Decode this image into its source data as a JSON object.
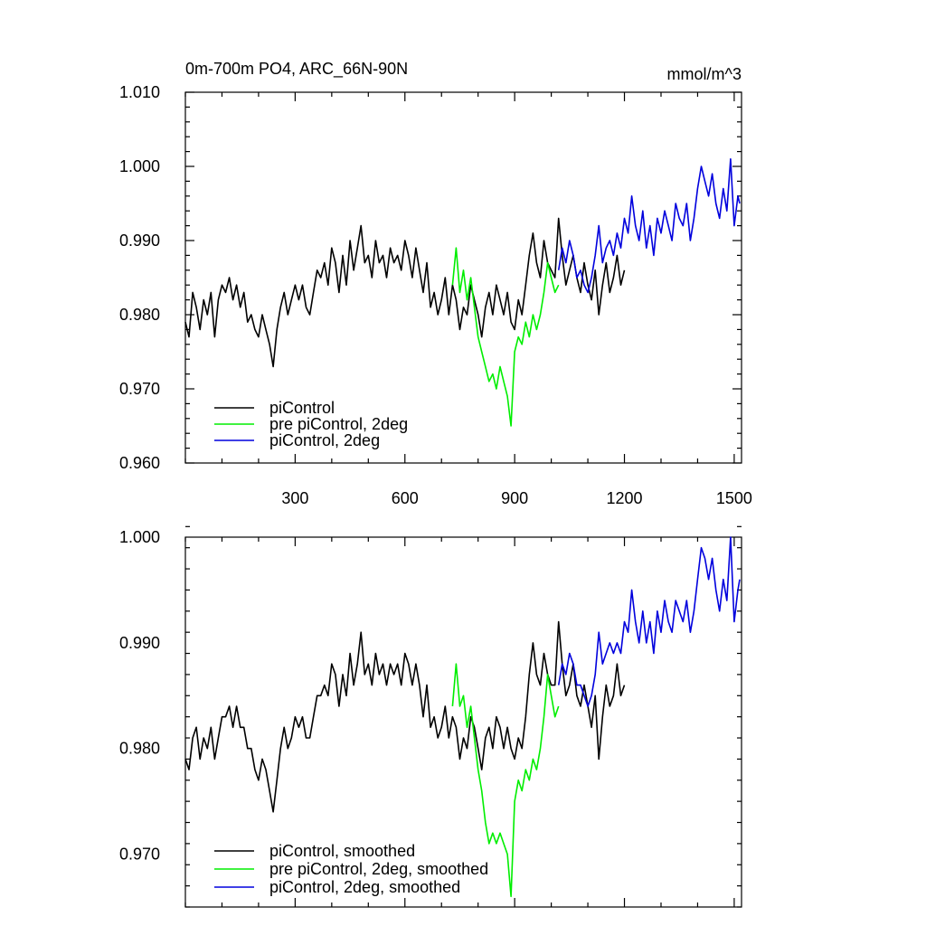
{
  "colors": {
    "black": "#000000",
    "green": "#00ee00",
    "blue": "#0000dd"
  },
  "chart_data": [
    {
      "type": "line",
      "title": "0m-700m PO4, ARC_66N-90N",
      "units": "mmol/m^3",
      "xlim": [
        0,
        1520
      ],
      "ylim": [
        0.96,
        1.01
      ],
      "x_ticks": [
        300,
        600,
        900,
        1200,
        1500
      ],
      "x_tick_labels": [
        "300",
        "600",
        "900",
        "1200",
        "1500"
      ],
      "y_ticks": [
        0.96,
        0.97,
        0.98,
        0.99,
        1.0,
        1.01
      ],
      "y_tick_labels": [
        "0.960",
        "0.970",
        "0.980",
        "0.990",
        "1.000",
        "1.010"
      ],
      "legend_position": "lower-left",
      "series": [
        {
          "name": "piControl",
          "color": "#000000",
          "x": [
            0,
            10,
            20,
            30,
            40,
            50,
            60,
            70,
            80,
            90,
            100,
            110,
            120,
            130,
            140,
            150,
            160,
            170,
            180,
            190,
            200,
            210,
            220,
            230,
            240,
            250,
            260,
            270,
            280,
            290,
            300,
            310,
            320,
            330,
            340,
            350,
            360,
            370,
            380,
            390,
            400,
            410,
            420,
            430,
            440,
            450,
            460,
            470,
            480,
            490,
            500,
            510,
            520,
            530,
            540,
            550,
            560,
            570,
            580,
            590,
            600,
            610,
            620,
            630,
            640,
            650,
            660,
            670,
            680,
            690,
            700,
            710,
            720,
            730,
            740,
            750,
            760,
            770,
            780,
            790,
            800,
            810,
            820,
            830,
            840,
            850,
            860,
            870,
            880,
            890,
            900,
            910,
            920,
            930,
            940,
            950,
            960,
            970,
            980,
            990,
            1000,
            1010,
            1020,
            1030,
            1040,
            1050,
            1060,
            1070,
            1080,
            1090,
            1100,
            1110,
            1120,
            1130,
            1140,
            1150,
            1160,
            1170,
            1180,
            1190,
            1200
          ],
          "values": [
            0.979,
            0.977,
            0.983,
            0.981,
            0.978,
            0.982,
            0.98,
            0.983,
            0.977,
            0.982,
            0.984,
            0.983,
            0.985,
            0.982,
            0.984,
            0.981,
            0.983,
            0.979,
            0.98,
            0.978,
            0.977,
            0.98,
            0.978,
            0.976,
            0.973,
            0.978,
            0.981,
            0.983,
            0.98,
            0.982,
            0.984,
            0.982,
            0.984,
            0.981,
            0.98,
            0.983,
            0.986,
            0.985,
            0.987,
            0.984,
            0.989,
            0.987,
            0.983,
            0.988,
            0.984,
            0.99,
            0.986,
            0.989,
            0.992,
            0.987,
            0.988,
            0.985,
            0.99,
            0.987,
            0.988,
            0.985,
            0.989,
            0.987,
            0.988,
            0.986,
            0.99,
            0.988,
            0.985,
            0.989,
            0.986,
            0.983,
            0.987,
            0.981,
            0.983,
            0.98,
            0.982,
            0.985,
            0.98,
            0.984,
            0.982,
            0.978,
            0.981,
            0.98,
            0.984,
            0.982,
            0.98,
            0.977,
            0.981,
            0.983,
            0.98,
            0.984,
            0.982,
            0.98,
            0.983,
            0.979,
            0.978,
            0.982,
            0.98,
            0.984,
            0.988,
            0.991,
            0.987,
            0.985,
            0.99,
            0.987,
            0.986,
            0.985,
            0.993,
            0.988,
            0.984,
            0.986,
            0.988,
            0.985,
            0.983,
            0.987,
            0.984,
            0.982,
            0.986,
            0.98,
            0.984,
            0.987,
            0.983,
            0.985,
            0.988,
            0.984,
            0.986
          ]
        },
        {
          "name": "pre piControl, 2deg",
          "color": "#00ee00",
          "x": [
            730,
            740,
            750,
            760,
            770,
            780,
            790,
            800,
            810,
            820,
            830,
            840,
            850,
            860,
            870,
            880,
            890,
            900,
            910,
            920,
            930,
            940,
            950,
            960,
            970,
            980,
            990,
            1000,
            1010,
            1020
          ],
          "values": [
            0.984,
            0.989,
            0.983,
            0.986,
            0.982,
            0.985,
            0.981,
            0.977,
            0.975,
            0.973,
            0.971,
            0.972,
            0.97,
            0.973,
            0.971,
            0.969,
            0.965,
            0.975,
            0.977,
            0.976,
            0.979,
            0.977,
            0.98,
            0.978,
            0.98,
            0.983,
            0.987,
            0.985,
            0.983,
            0.984
          ]
        },
        {
          "name": "piControl, 2deg",
          "color": "#0000dd",
          "x": [
            1020,
            1030,
            1040,
            1050,
            1060,
            1070,
            1080,
            1090,
            1100,
            1110,
            1120,
            1130,
            1140,
            1150,
            1160,
            1170,
            1180,
            1190,
            1200,
            1210,
            1220,
            1230,
            1240,
            1250,
            1260,
            1270,
            1280,
            1290,
            1300,
            1310,
            1320,
            1330,
            1340,
            1350,
            1360,
            1370,
            1380,
            1390,
            1400,
            1410,
            1420,
            1430,
            1440,
            1450,
            1460,
            1470,
            1480,
            1490,
            1500,
            1510,
            1515
          ],
          "values": [
            0.986,
            0.989,
            0.987,
            0.99,
            0.988,
            0.985,
            0.986,
            0.984,
            0.983,
            0.985,
            0.988,
            0.992,
            0.987,
            0.989,
            0.99,
            0.988,
            0.991,
            0.989,
            0.993,
            0.991,
            0.996,
            0.992,
            0.99,
            0.994,
            0.989,
            0.992,
            0.988,
            0.993,
            0.991,
            0.994,
            0.992,
            0.99,
            0.995,
            0.993,
            0.992,
            0.995,
            0.99,
            0.993,
            0.997,
            1.0,
            0.998,
            0.996,
            0.999,
            0.995,
            0.993,
            0.997,
            0.994,
            1.001,
            0.992,
            0.996,
            0.995
          ]
        }
      ]
    },
    {
      "type": "line",
      "title": "",
      "xlim": [
        0,
        1520
      ],
      "ylim": [
        0.965,
        1.0
      ],
      "x_ticks": [
        300,
        600,
        900,
        1200,
        1500
      ],
      "y_ticks": [
        0.97,
        0.98,
        0.99,
        1.0
      ],
      "y_tick_labels": [
        "0.970",
        "0.980",
        "0.990",
        "1.000"
      ],
      "legend_position": "lower-left",
      "series": [
        {
          "name": "piControl, smoothed",
          "color": "#000000",
          "x": [
            0,
            10,
            20,
            30,
            40,
            50,
            60,
            70,
            80,
            90,
            100,
            110,
            120,
            130,
            140,
            150,
            160,
            170,
            180,
            190,
            200,
            210,
            220,
            230,
            240,
            250,
            260,
            270,
            280,
            290,
            300,
            310,
            320,
            330,
            340,
            350,
            360,
            370,
            380,
            390,
            400,
            410,
            420,
            430,
            440,
            450,
            460,
            470,
            480,
            490,
            500,
            510,
            520,
            530,
            540,
            550,
            560,
            570,
            580,
            590,
            600,
            610,
            620,
            630,
            640,
            650,
            660,
            670,
            680,
            690,
            700,
            710,
            720,
            730,
            740,
            750,
            760,
            770,
            780,
            790,
            800,
            810,
            820,
            830,
            840,
            850,
            860,
            870,
            880,
            890,
            900,
            910,
            920,
            930,
            940,
            950,
            960,
            970,
            980,
            990,
            1000,
            1010,
            1020,
            1030,
            1040,
            1050,
            1060,
            1070,
            1080,
            1090,
            1100,
            1110,
            1120,
            1130,
            1140,
            1150,
            1160,
            1170,
            1180,
            1190,
            1200
          ],
          "values": [
            0.979,
            0.978,
            0.981,
            0.982,
            0.979,
            0.981,
            0.98,
            0.982,
            0.979,
            0.981,
            0.983,
            0.983,
            0.984,
            0.982,
            0.984,
            0.982,
            0.982,
            0.98,
            0.98,
            0.978,
            0.977,
            0.979,
            0.978,
            0.976,
            0.974,
            0.977,
            0.98,
            0.982,
            0.98,
            0.981,
            0.983,
            0.982,
            0.983,
            0.981,
            0.981,
            0.983,
            0.985,
            0.985,
            0.986,
            0.985,
            0.988,
            0.987,
            0.984,
            0.987,
            0.985,
            0.989,
            0.986,
            0.988,
            0.991,
            0.987,
            0.988,
            0.986,
            0.989,
            0.987,
            0.988,
            0.986,
            0.988,
            0.987,
            0.988,
            0.986,
            0.989,
            0.988,
            0.986,
            0.988,
            0.986,
            0.983,
            0.986,
            0.982,
            0.983,
            0.981,
            0.982,
            0.984,
            0.981,
            0.983,
            0.982,
            0.979,
            0.981,
            0.98,
            0.983,
            0.982,
            0.98,
            0.978,
            0.981,
            0.982,
            0.98,
            0.983,
            0.982,
            0.98,
            0.982,
            0.98,
            0.979,
            0.981,
            0.98,
            0.983,
            0.987,
            0.99,
            0.987,
            0.986,
            0.989,
            0.987,
            0.986,
            0.986,
            0.992,
            0.988,
            0.985,
            0.986,
            0.988,
            0.985,
            0.984,
            0.986,
            0.984,
            0.982,
            0.985,
            0.979,
            0.983,
            0.986,
            0.984,
            0.985,
            0.988,
            0.985,
            0.986
          ]
        },
        {
          "name": "pre piControl, 2deg, smoothed",
          "color": "#00ee00",
          "x": [
            730,
            740,
            750,
            760,
            770,
            780,
            790,
            800,
            810,
            820,
            830,
            840,
            850,
            860,
            870,
            880,
            890,
            900,
            910,
            920,
            930,
            940,
            950,
            960,
            970,
            980,
            990,
            1000,
            1010,
            1020
          ],
          "values": [
            0.984,
            0.988,
            0.984,
            0.985,
            0.982,
            0.984,
            0.981,
            0.978,
            0.976,
            0.973,
            0.971,
            0.972,
            0.971,
            0.972,
            0.971,
            0.97,
            0.966,
            0.975,
            0.977,
            0.976,
            0.978,
            0.977,
            0.979,
            0.978,
            0.98,
            0.983,
            0.987,
            0.985,
            0.983,
            0.984
          ]
        },
        {
          "name": "piControl, 2deg, smoothed",
          "color": "#0000dd",
          "x": [
            1020,
            1030,
            1040,
            1050,
            1060,
            1070,
            1080,
            1090,
            1100,
            1110,
            1120,
            1130,
            1140,
            1150,
            1160,
            1170,
            1180,
            1190,
            1200,
            1210,
            1220,
            1230,
            1240,
            1250,
            1260,
            1270,
            1280,
            1290,
            1300,
            1310,
            1320,
            1330,
            1340,
            1350,
            1360,
            1370,
            1380,
            1390,
            1400,
            1410,
            1420,
            1430,
            1440,
            1450,
            1460,
            1470,
            1480,
            1490,
            1500,
            1510,
            1515
          ],
          "values": [
            0.986,
            0.988,
            0.987,
            0.989,
            0.988,
            0.986,
            0.986,
            0.985,
            0.984,
            0.985,
            0.987,
            0.991,
            0.988,
            0.989,
            0.99,
            0.989,
            0.99,
            0.989,
            0.992,
            0.991,
            0.995,
            0.992,
            0.99,
            0.993,
            0.99,
            0.992,
            0.989,
            0.993,
            0.991,
            0.994,
            0.992,
            0.991,
            0.994,
            0.993,
            0.992,
            0.994,
            0.991,
            0.993,
            0.996,
            0.999,
            0.998,
            0.996,
            0.998,
            0.995,
            0.993,
            0.996,
            0.994,
            1.0,
            0.992,
            0.995,
            0.996
          ]
        }
      ]
    }
  ]
}
